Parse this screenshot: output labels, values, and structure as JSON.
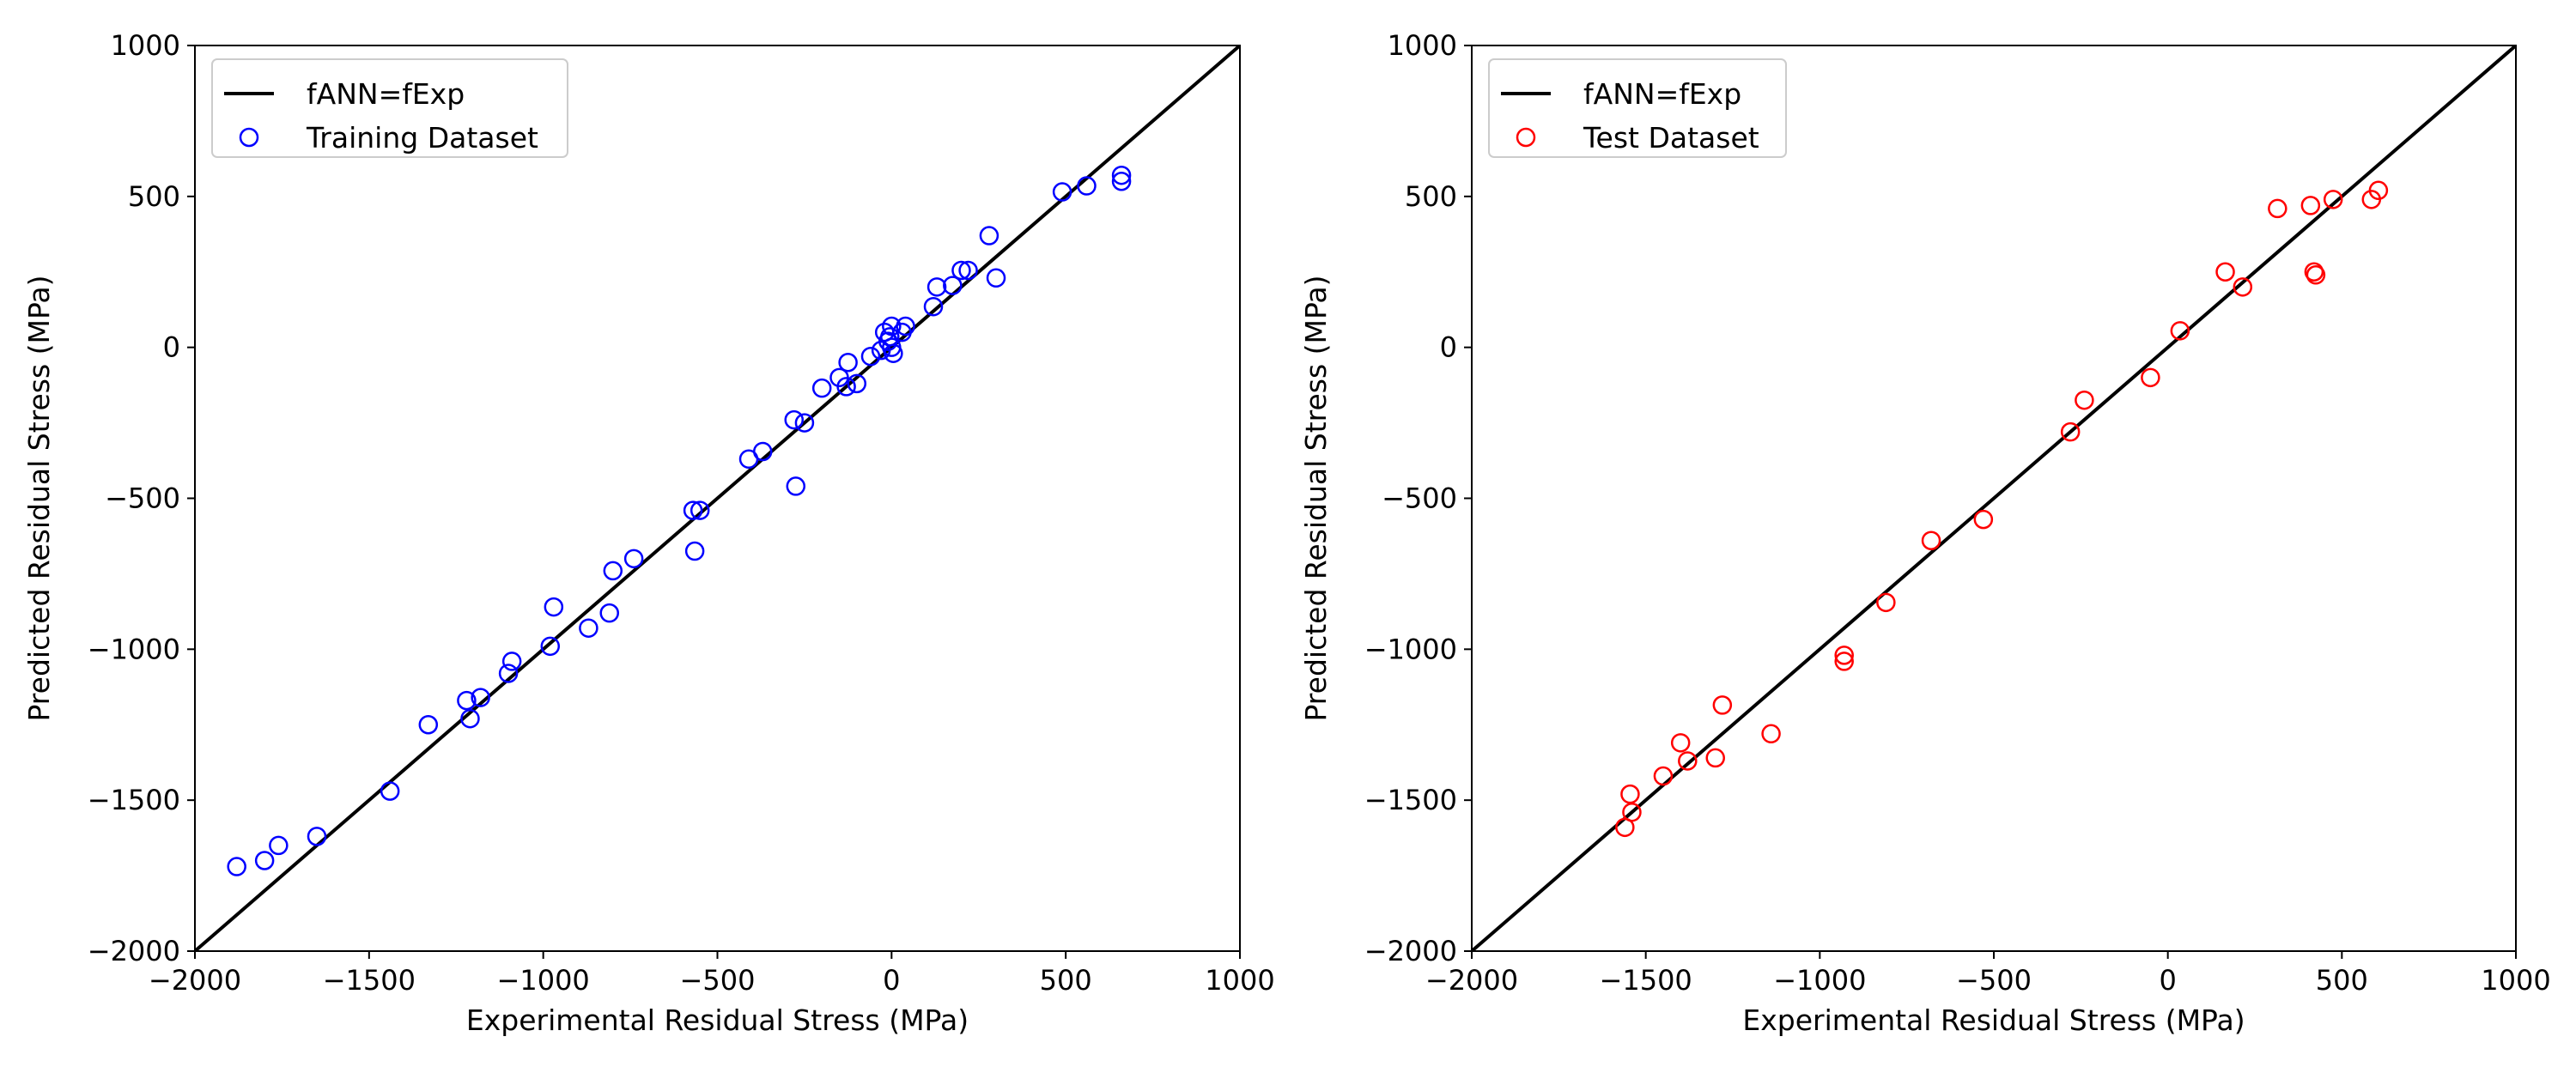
{
  "chart_data": [
    {
      "type": "scatter",
      "xlabel": "Experimental Residual Stress (MPa)",
      "ylabel": "Predicted Residual Stress (MPa)",
      "xlim": [
        -2000,
        1000
      ],
      "ylim": [
        -2000,
        1000
      ],
      "xticks": [
        -2000,
        -1500,
        -1000,
        -500,
        0,
        500,
        1000
      ],
      "yticks": [
        -2000,
        -1500,
        -1000,
        -500,
        0,
        500,
        1000
      ],
      "tick_labels_x": [
        "−2000",
        "−1500",
        "−1000",
        "−500",
        "0",
        "500",
        "1000"
      ],
      "tick_labels_y": [
        "−2000",
        "−1500",
        "−1000",
        "−500",
        "0",
        "500",
        "1000"
      ],
      "legend_position": "upper-left",
      "line": {
        "name": "fANN=fExp",
        "color": "#000000",
        "points": [
          [
            -2000,
            -2000
          ],
          [
            1000,
            1000
          ]
        ]
      },
      "series": [
        {
          "name": "Training Dataset",
          "color": "#0000ff",
          "points": [
            [
              -1880,
              -1720
            ],
            [
              -1800,
              -1700
            ],
            [
              -1760,
              -1650
            ],
            [
              -1650,
              -1620
            ],
            [
              -1440,
              -1470
            ],
            [
              -1330,
              -1250
            ],
            [
              -1220,
              -1170
            ],
            [
              -1210,
              -1230
            ],
            [
              -1180,
              -1160
            ],
            [
              -1100,
              -1080
            ],
            [
              -1090,
              -1040
            ],
            [
              -980,
              -990
            ],
            [
              -970,
              -860
            ],
            [
              -870,
              -930
            ],
            [
              -810,
              -880
            ],
            [
              -800,
              -740
            ],
            [
              -740,
              -700
            ],
            [
              -570,
              -540
            ],
            [
              -565,
              -675
            ],
            [
              -550,
              -540
            ],
            [
              -410,
              -370
            ],
            [
              -370,
              -345
            ],
            [
              -280,
              -240
            ],
            [
              -275,
              -460
            ],
            [
              -250,
              -250
            ],
            [
              -200,
              -135
            ],
            [
              -150,
              -100
            ],
            [
              -130,
              -130
            ],
            [
              -125,
              -50
            ],
            [
              -100,
              -120
            ],
            [
              -60,
              -30
            ],
            [
              -30,
              -10
            ],
            [
              -20,
              50
            ],
            [
              -10,
              20
            ],
            [
              0,
              0
            ],
            [
              0,
              70
            ],
            [
              -5,
              35
            ],
            [
              5,
              -20
            ],
            [
              30,
              50
            ],
            [
              40,
              70
            ],
            [
              120,
              135
            ],
            [
              130,
              200
            ],
            [
              175,
              205
            ],
            [
              200,
              255
            ],
            [
              220,
              255
            ],
            [
              280,
              370
            ],
            [
              300,
              230
            ],
            [
              490,
              515
            ],
            [
              560,
              535
            ],
            [
              660,
              570
            ],
            [
              660,
              550
            ]
          ]
        }
      ]
    },
    {
      "type": "scatter",
      "xlabel": "Experimental Residual Stress (MPa)",
      "ylabel": "Predicted Residual Stress (MPa)",
      "xlim": [
        -2000,
        1000
      ],
      "ylim": [
        -2000,
        1000
      ],
      "xticks": [
        -2000,
        -1500,
        -1000,
        -500,
        0,
        500,
        1000
      ],
      "yticks": [
        -2000,
        -1500,
        -1000,
        -500,
        0,
        500,
        1000
      ],
      "tick_labels_x": [
        "−2000",
        "−1500",
        "−1000",
        "−500",
        "0",
        "500",
        "1000"
      ],
      "tick_labels_y": [
        "−2000",
        "−1500",
        "−1000",
        "−500",
        "0",
        "500",
        "1000"
      ],
      "legend_position": "upper-left",
      "line": {
        "name": "fANN=fExp",
        "color": "#000000",
        "points": [
          [
            -2000,
            -2000
          ],
          [
            1000,
            1000
          ]
        ]
      },
      "series": [
        {
          "name": "Test Dataset",
          "color": "#ff0000",
          "points": [
            [
              -1560,
              -1590
            ],
            [
              -1545,
              -1480
            ],
            [
              -1540,
              -1540
            ],
            [
              -1450,
              -1420
            ],
            [
              -1400,
              -1310
            ],
            [
              -1380,
              -1370
            ],
            [
              -1300,
              -1360
            ],
            [
              -1280,
              -1185
            ],
            [
              -1140,
              -1280
            ],
            [
              -930,
              -1020
            ],
            [
              -930,
              -1040
            ],
            [
              -810,
              -845
            ],
            [
              -680,
              -640
            ],
            [
              -530,
              -570
            ],
            [
              -280,
              -280
            ],
            [
              -240,
              -175
            ],
            [
              -50,
              -100
            ],
            [
              35,
              55
            ],
            [
              165,
              250
            ],
            [
              215,
              200
            ],
            [
              315,
              460
            ],
            [
              410,
              470
            ],
            [
              420,
              250
            ],
            [
              425,
              240
            ],
            [
              475,
              490
            ],
            [
              585,
              490
            ],
            [
              605,
              520
            ]
          ]
        }
      ]
    }
  ]
}
